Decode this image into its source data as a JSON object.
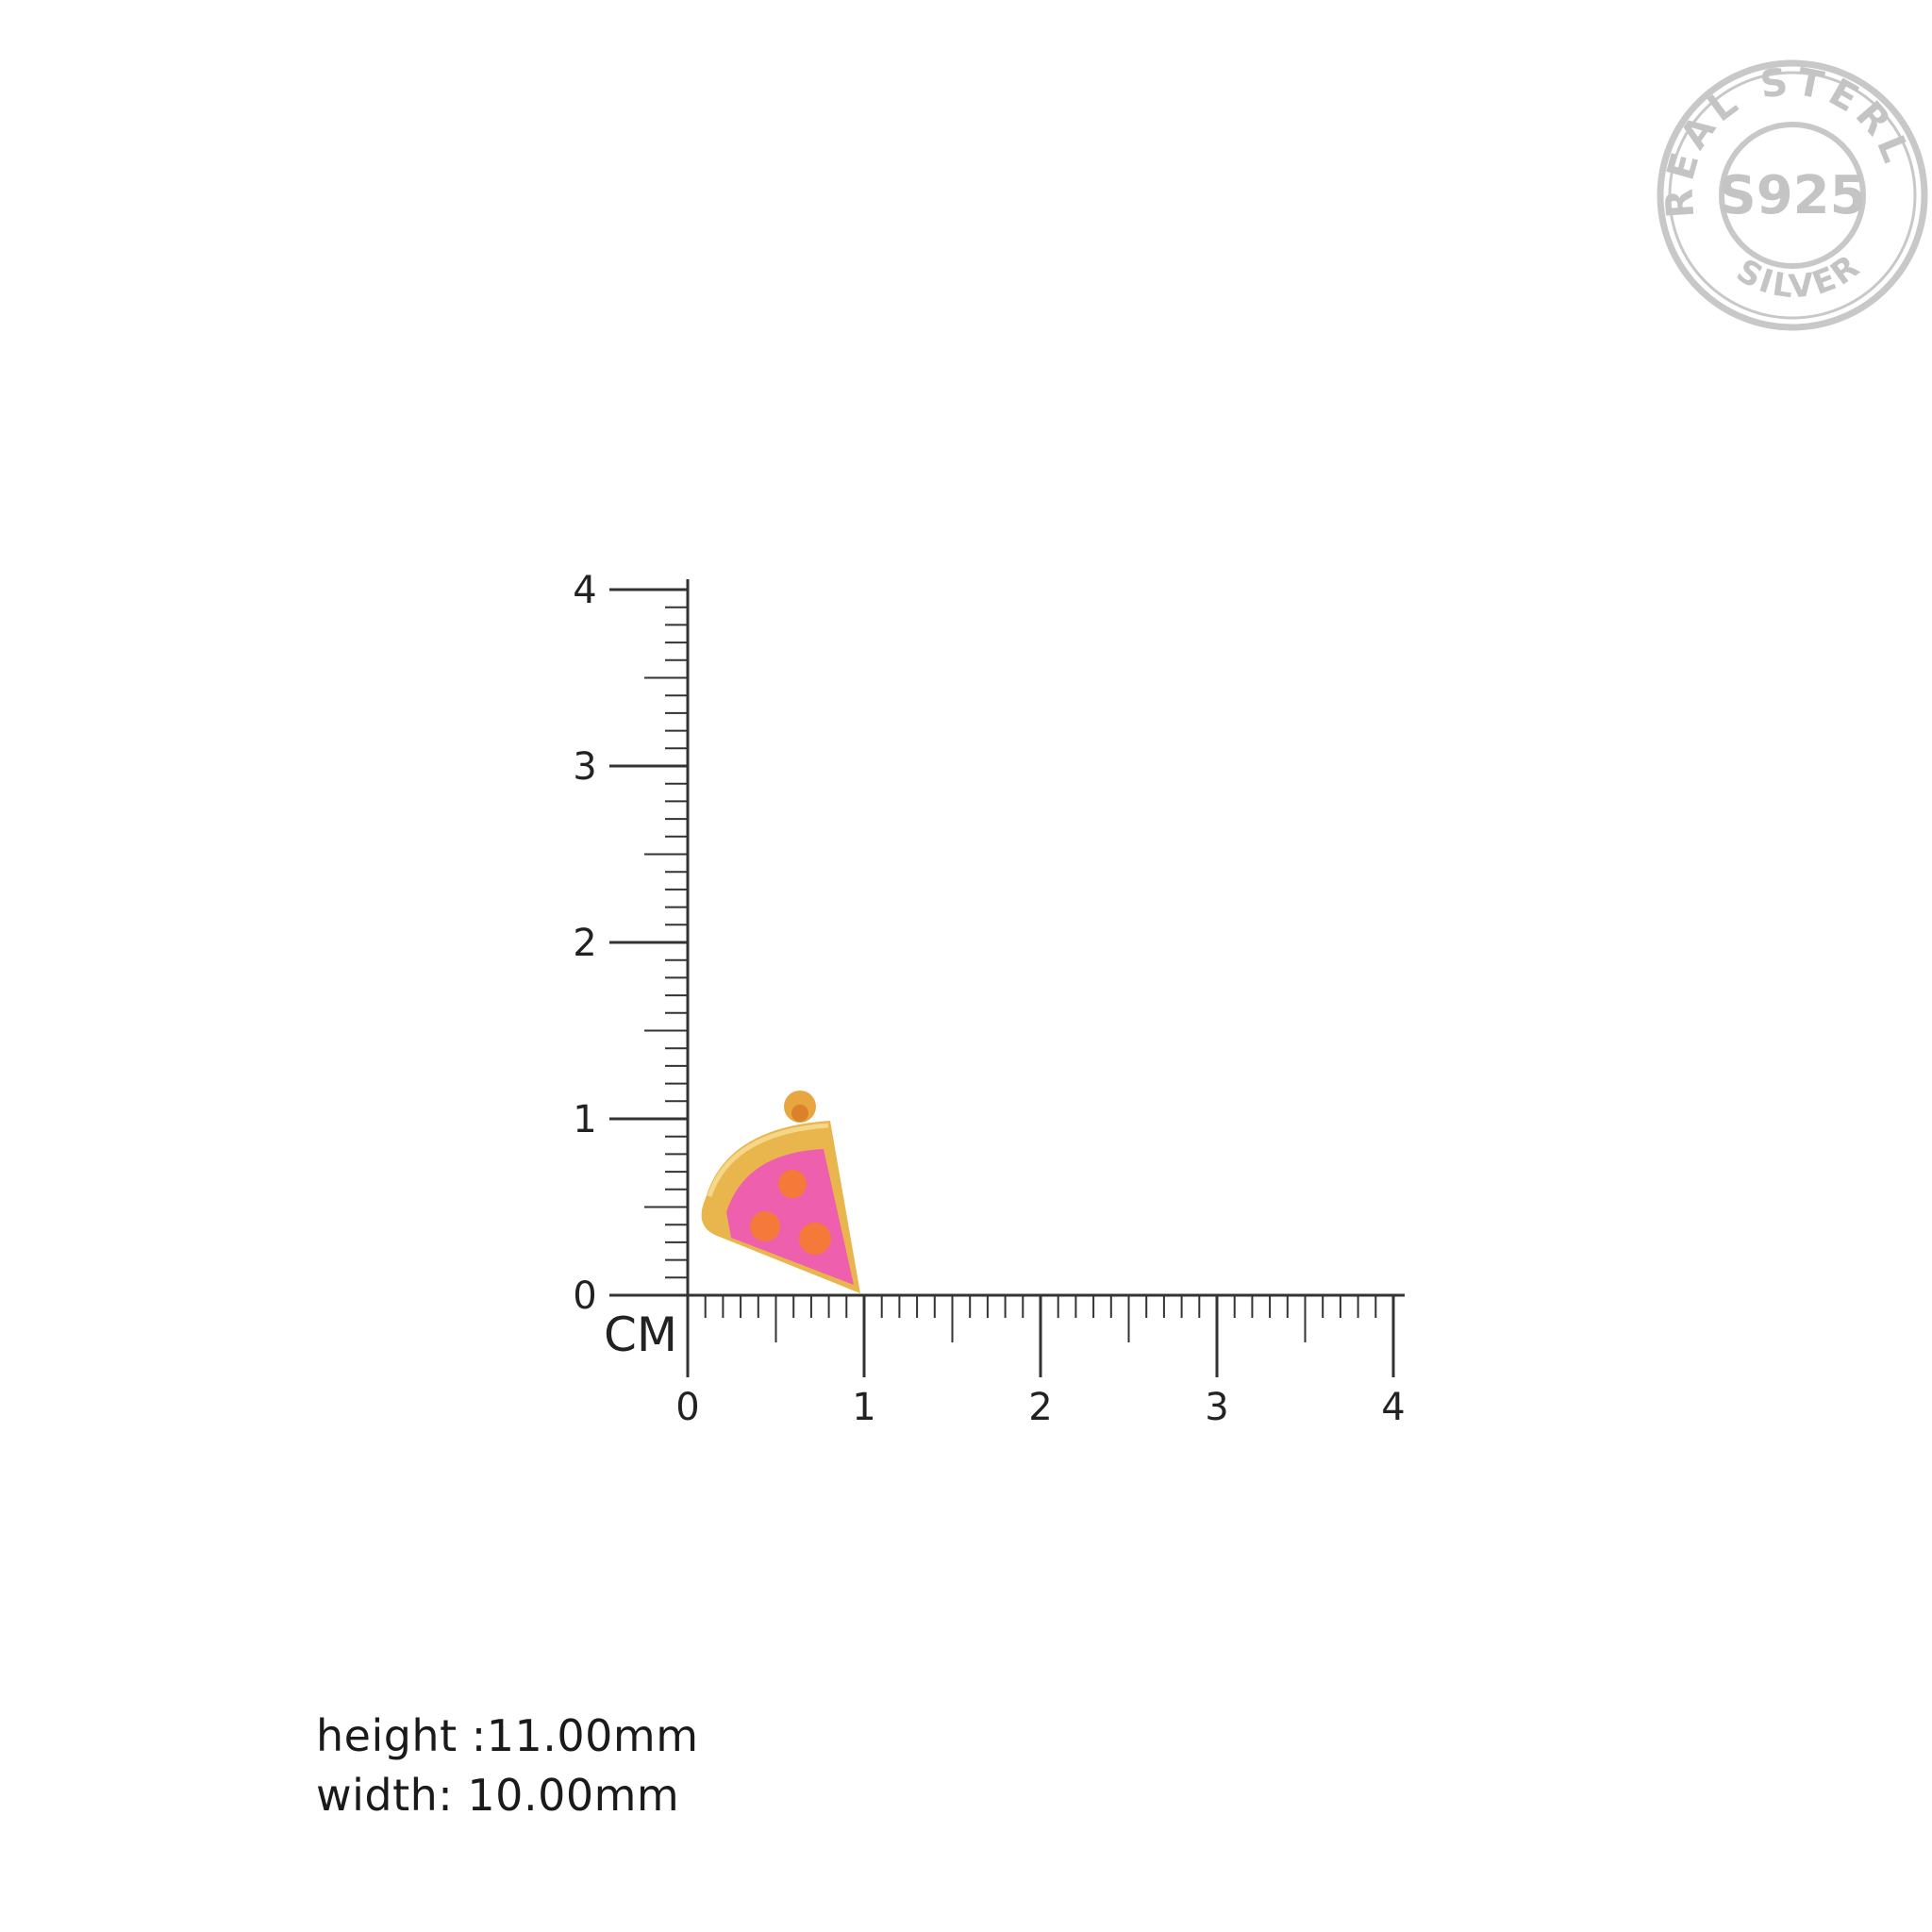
{
  "stamp": {
    "top_text": "REAL STERLING",
    "center_text": "S925",
    "bottom_text": "SILVER",
    "color": "#c8c8c8"
  },
  "ruler": {
    "unit_label": "CM",
    "x_ticks": [
      "0",
      "1",
      "2",
      "3",
      "4"
    ],
    "y_ticks": [
      "0",
      "1",
      "2",
      "3",
      "4"
    ],
    "range_cm": [
      0,
      4
    ],
    "line_color": "#333333"
  },
  "product": {
    "name_icon": "pizza-slice-pendant",
    "crust_color": "#e8b84a",
    "sauce_color": "#ee5fae",
    "pepperoni_color": "#f57a3a",
    "size_cm": {
      "width": 1.0,
      "height": 1.1
    }
  },
  "dimensions": {
    "height": "height :11.00mm",
    "width": "width: 10.00mm"
  }
}
